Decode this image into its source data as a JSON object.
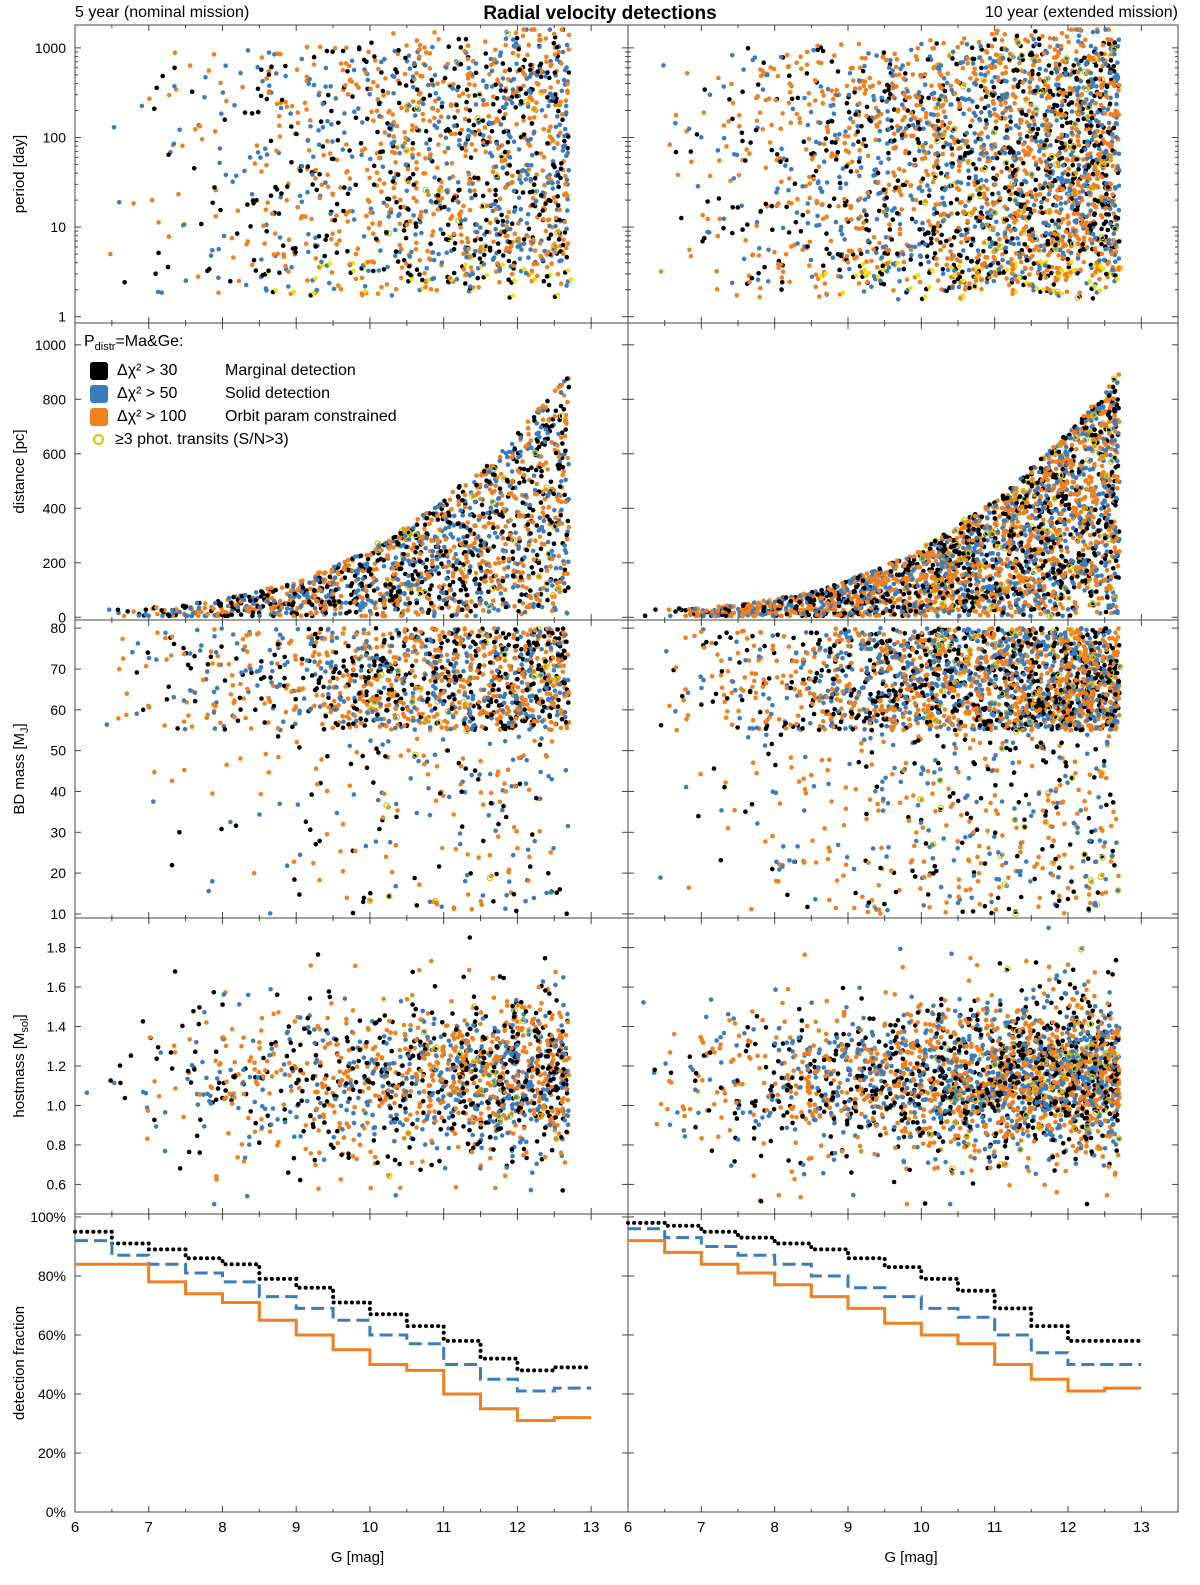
{
  "title": "Radial velocity detections",
  "left_label": "5 year (nominal mission)",
  "right_label": "10 year (extended mission)",
  "legend": {
    "header_p": "P",
    "header_sub": "distr",
    "header_rest": "=Ma&Ge:",
    "items": [
      {
        "expr": "Δχ² > 30",
        "label": "Marginal detection",
        "color": "#000000"
      },
      {
        "expr": "Δχ² > 50",
        "label": "Solid detection",
        "color": "#3a7dbf"
      },
      {
        "expr": "Δχ² > 100",
        "label": "Orbit param constrained",
        "color": "#f07f1e"
      }
    ],
    "transit_label": "≥3 phot. transits (S/N>3)",
    "transit_color": "#c8c817"
  },
  "colors": {
    "black": "#000000",
    "blue": "#3a7dbf",
    "orange": "#f07f1e",
    "yellow": "#f2e400",
    "ring": "#c8c817"
  },
  "chart_data": [
    {
      "type": "scatter",
      "ylabel": "period [day]",
      "yscale": "log",
      "ylim": [
        0.85,
        1800
      ],
      "yticks": [
        "1",
        "10",
        "100",
        "1000"
      ],
      "xlim": [
        6,
        13.5
      ]
    },
    {
      "type": "scatter",
      "ylabel": "distance [pc]",
      "ylim": [
        -10,
        1080
      ],
      "yticks": [
        "0",
        "200",
        "400",
        "600",
        "800",
        "1000"
      ],
      "xlim": [
        6,
        13.5
      ]
    },
    {
      "type": "scatter",
      "ylabel": "BD mass [M_J]",
      "ylim": [
        9,
        82
      ],
      "yticks": [
        "10",
        "20",
        "30",
        "40",
        "50",
        "60",
        "70",
        "80"
      ],
      "xlim": [
        6,
        13.5
      ]
    },
    {
      "type": "scatter",
      "ylabel": "hostmass [M_sol]",
      "ylim": [
        0.45,
        1.95
      ],
      "yticks": [
        "0.6",
        "0.8",
        "1.0",
        "1.2",
        "1.4",
        "1.6",
        "1.8"
      ],
      "xlim": [
        6,
        13.5
      ]
    },
    {
      "type": "line",
      "ylabel": "detection fraction",
      "xlabel": "G [mag]",
      "xlim": [
        6,
        13.5
      ],
      "ylim": [
        0,
        101
      ],
      "yticks": [
        "0%",
        "20%",
        "40%",
        "60%",
        "80%",
        "100%"
      ],
      "xticks": [
        "6",
        "7",
        "8",
        "9",
        "10",
        "11",
        "12",
        "13"
      ],
      "bins": [
        6.0,
        6.5,
        7.0,
        7.5,
        8.0,
        8.5,
        9.0,
        9.5,
        10.0,
        10.5,
        11.0,
        11.5,
        12.0,
        12.5
      ],
      "series_5yr": [
        {
          "name": "Marginal detection",
          "values": [
            95,
            91,
            89,
            86,
            84,
            79,
            76,
            71,
            67,
            63,
            58,
            52,
            48,
            49
          ]
        },
        {
          "name": "Solid detection",
          "values": [
            92,
            87,
            84,
            81,
            78,
            73,
            69,
            65,
            60,
            57,
            50,
            45,
            41,
            42
          ]
        },
        {
          "name": "Orbit param constrained",
          "values": [
            84,
            84,
            78,
            74,
            71,
            65,
            60,
            55,
            50,
            48,
            40,
            35,
            31,
            32
          ]
        }
      ],
      "series_10yr": [
        {
          "name": "Marginal detection",
          "values": [
            98,
            97,
            95,
            93,
            91,
            89,
            86,
            83,
            79,
            75,
            69,
            63,
            58,
            58
          ]
        },
        {
          "name": "Solid detection",
          "values": [
            96,
            93,
            90,
            87,
            84,
            80,
            76,
            73,
            69,
            66,
            60,
            54,
            50,
            50
          ]
        },
        {
          "name": "Orbit param constrained",
          "values": [
            92,
            88,
            84,
            81,
            77,
            73,
            69,
            64,
            60,
            57,
            50,
            45,
            41,
            42
          ]
        }
      ]
    }
  ]
}
